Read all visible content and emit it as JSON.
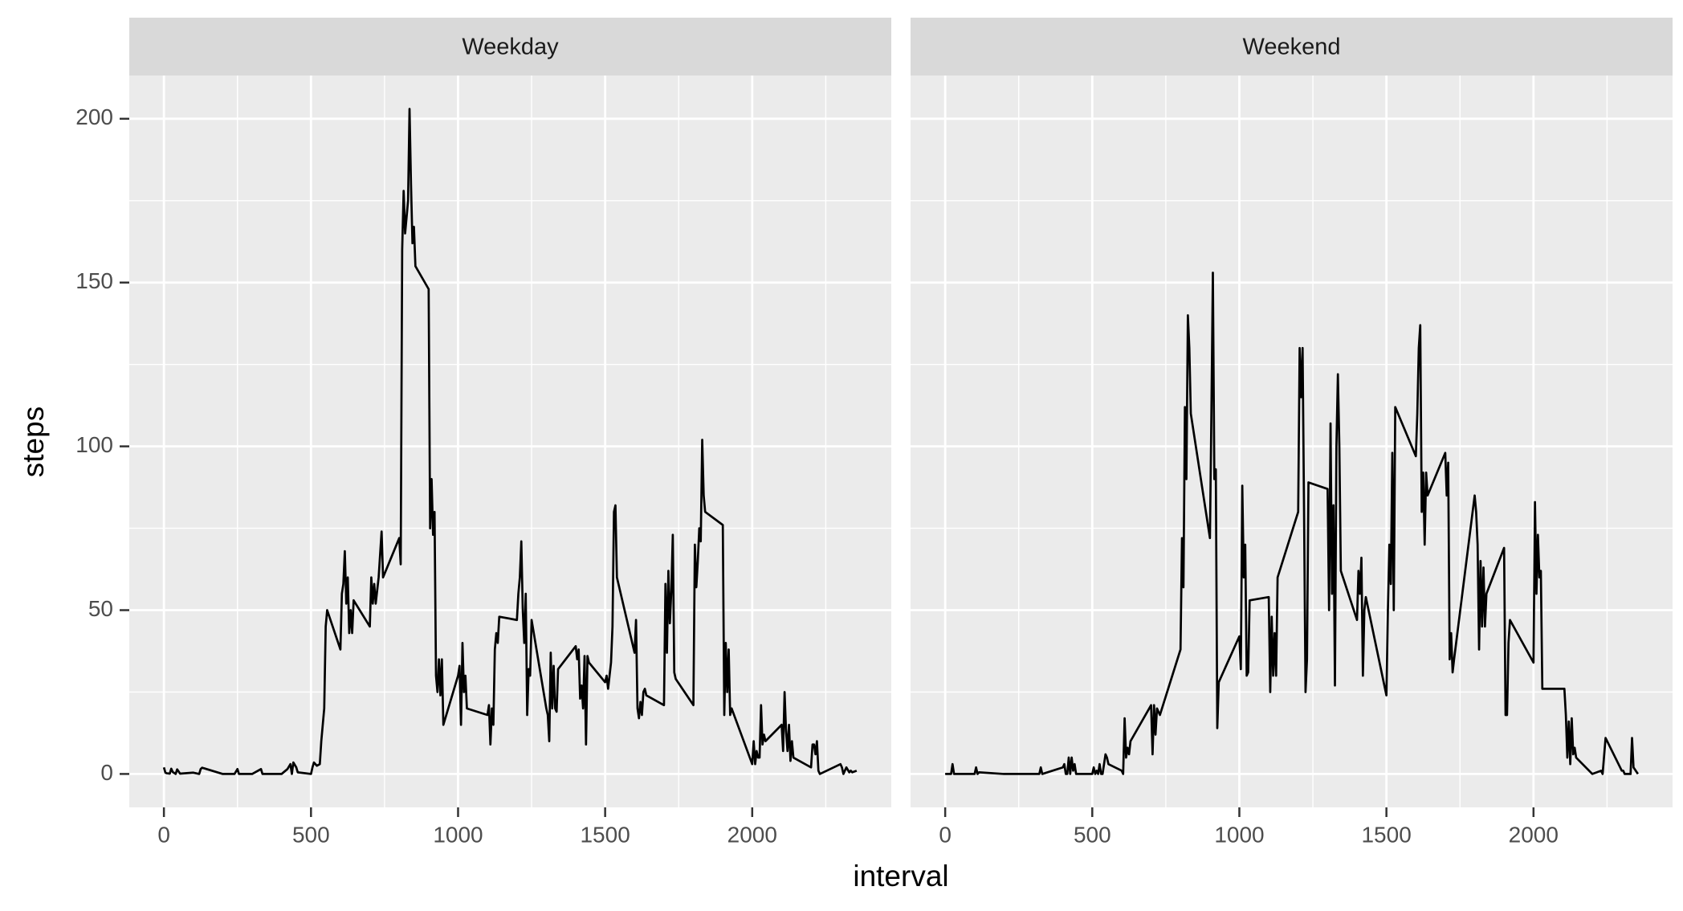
{
  "chart_data": {
    "type": "line",
    "xlabel": "interval",
    "ylabel": "steps",
    "xlim": [
      -117.75,
      2472.75
    ],
    "ylim": [
      -10.2,
      213.2
    ],
    "xticks": [
      0,
      500,
      1000,
      1500,
      2000
    ],
    "yticks": [
      0,
      50,
      100,
      150,
      200
    ],
    "minor_xticks": [
      250,
      750,
      1250,
      1750,
      2250
    ],
    "minor_yticks": [
      25,
      75,
      125,
      175
    ],
    "grid": true,
    "color": "#000000",
    "panels": [
      {
        "title": "Weekday",
        "x": [
          0,
          5,
          10,
          20,
          25,
          30,
          40,
          45,
          55,
          100,
          120,
          125,
          130,
          200,
          240,
          250,
          255,
          300,
          330,
          335,
          400,
          420,
          430,
          435,
          440,
          450,
          455,
          500,
          505,
          510,
          520,
          530,
          535,
          545,
          550,
          555,
          600,
          605,
          610,
          615,
          620,
          625,
          630,
          635,
          640,
          645,
          700,
          705,
          710,
          715,
          720,
          730,
          740,
          745,
          800,
          805,
          810,
          815,
          820,
          825,
          830,
          835,
          840,
          845,
          850,
          855,
          900,
          905,
          910,
          915,
          920,
          925,
          930,
          935,
          940,
          945,
          950,
          1000,
          1005,
          1010,
          1015,
          1020,
          1025,
          1030,
          1100,
          1105,
          1110,
          1115,
          1120,
          1125,
          1130,
          1135,
          1140,
          1200,
          1205,
          1210,
          1215,
          1220,
          1225,
          1230,
          1235,
          1240,
          1245,
          1250,
          1300,
          1305,
          1310,
          1315,
          1320,
          1325,
          1330,
          1335,
          1340,
          1400,
          1405,
          1410,
          1415,
          1420,
          1425,
          1430,
          1435,
          1440,
          1445,
          1500,
          1505,
          1510,
          1515,
          1520,
          1525,
          1530,
          1535,
          1540,
          1600,
          1605,
          1610,
          1615,
          1620,
          1625,
          1630,
          1635,
          1640,
          1700,
          1705,
          1710,
          1715,
          1720,
          1725,
          1730,
          1735,
          1740,
          1800,
          1805,
          1810,
          1815,
          1820,
          1825,
          1830,
          1835,
          1840,
          1900,
          1905,
          1910,
          1915,
          1920,
          1925,
          1930,
          2000,
          2005,
          2010,
          2015,
          2020,
          2025,
          2030,
          2035,
          2040,
          2045,
          2100,
          2105,
          2110,
          2115,
          2120,
          2125,
          2130,
          2135,
          2140,
          2200,
          2205,
          2210,
          2215,
          2220,
          2225,
          2230,
          2300,
          2305,
          2310,
          2315,
          2320,
          2330,
          2335,
          2340,
          2355
        ],
        "values": [
          2,
          0.4,
          0.2,
          0.1,
          1.6,
          0.6,
          0,
          1.4,
          0.1,
          0.4,
          0,
          1.5,
          1.9,
          0,
          0,
          1.5,
          0,
          0,
          1.5,
          0,
          0,
          1.5,
          3,
          0,
          3.5,
          2,
          0.5,
          0,
          2,
          3.5,
          2.5,
          3,
          10,
          20,
          45,
          50,
          38,
          55,
          58,
          68,
          52,
          60,
          43,
          50,
          43,
          53,
          45,
          60,
          52,
          58,
          52,
          60,
          74,
          60,
          72,
          64,
          160,
          178,
          165,
          170,
          175,
          203,
          180,
          162,
          167,
          155,
          148,
          75,
          90,
          73,
          80,
          30,
          25,
          35,
          24,
          35,
          15,
          30,
          33,
          15,
          40,
          25,
          30,
          20,
          18,
          21,
          9,
          20,
          15,
          38,
          43,
          40,
          48,
          47,
          55,
          60,
          71,
          50,
          40,
          55,
          18,
          32,
          30,
          47,
          20,
          18,
          10,
          37,
          20,
          33,
          20,
          19,
          32,
          39,
          35,
          38,
          23,
          27,
          20,
          36,
          9,
          36,
          34,
          28,
          30,
          26,
          30,
          34,
          45,
          80,
          82,
          60,
          37,
          47,
          20,
          17,
          22,
          18,
          25,
          26,
          24,
          21,
          58,
          37,
          62,
          46,
          56,
          73,
          31,
          29,
          21,
          70,
          57,
          65,
          75,
          71,
          102,
          85,
          80,
          76,
          18,
          40,
          25,
          38,
          18,
          20,
          3,
          10,
          3,
          7,
          5,
          5,
          21,
          9,
          12,
          10,
          15,
          7,
          25,
          13,
          7,
          15,
          4,
          10,
          5,
          2,
          9,
          9,
          6,
          10,
          1,
          0,
          3,
          2,
          0,
          1,
          2,
          0.5,
          1,
          0.5,
          1
        ]
      },
      {
        "title": "Weekend",
        "x": [
          0,
          5,
          10,
          15,
          20,
          25,
          30,
          100,
          105,
          110,
          115,
          200,
          300,
          320,
          325,
          330,
          400,
          405,
          410,
          415,
          420,
          425,
          430,
          435,
          440,
          445,
          500,
          505,
          510,
          515,
          520,
          525,
          530,
          535,
          545,
          550,
          555,
          600,
          605,
          610,
          615,
          620,
          625,
          630,
          700,
          705,
          710,
          715,
          720,
          730,
          800,
          805,
          810,
          815,
          820,
          825,
          830,
          835,
          900,
          905,
          910,
          915,
          920,
          925,
          930,
          1000,
          1005,
          1010,
          1015,
          1020,
          1025,
          1030,
          1035,
          1100,
          1105,
          1110,
          1115,
          1120,
          1125,
          1130,
          1200,
          1205,
          1210,
          1215,
          1220,
          1225,
          1230,
          1235,
          1300,
          1305,
          1310,
          1315,
          1320,
          1325,
          1330,
          1335,
          1340,
          1345,
          1400,
          1405,
          1410,
          1415,
          1420,
          1425,
          1430,
          1500,
          1505,
          1510,
          1515,
          1520,
          1525,
          1530,
          1600,
          1605,
          1610,
          1615,
          1620,
          1625,
          1630,
          1635,
          1640,
          1700,
          1705,
          1710,
          1715,
          1720,
          1725,
          1730,
          1800,
          1805,
          1810,
          1815,
          1820,
          1825,
          1830,
          1835,
          1840,
          1900,
          1905,
          1910,
          1915,
          1920,
          2000,
          2005,
          2010,
          2015,
          2020,
          2025,
          2030,
          2100,
          2105,
          2110,
          2115,
          2120,
          2125,
          2130,
          2135,
          2140,
          2145,
          2200,
          2230,
          2235,
          2245,
          2300,
          2305,
          2310,
          2330,
          2335,
          2340,
          2355
        ],
        "values": [
          0,
          0,
          0,
          0,
          0,
          3,
          0,
          0,
          2,
          0,
          0.5,
          0,
          0,
          0,
          2,
          0,
          2,
          3,
          0,
          0,
          5,
          0,
          5,
          1,
          3,
          0,
          0,
          2,
          0,
          1,
          0,
          3,
          0,
          0,
          6,
          5,
          3,
          1,
          0,
          17,
          5,
          8,
          6,
          10,
          21,
          6,
          21,
          12,
          20,
          18,
          38,
          72,
          57,
          112,
          90,
          140,
          130,
          110,
          72,
          110,
          153,
          90,
          93,
          14,
          28,
          42,
          32,
          88,
          60,
          70,
          30,
          31,
          53,
          54,
          25,
          48,
          30,
          43,
          30,
          60,
          80,
          130,
          115,
          130,
          80,
          25,
          35,
          89,
          87,
          50,
          107,
          55,
          82,
          27,
          100,
          122,
          100,
          62,
          47,
          62,
          55,
          66,
          30,
          50,
          54,
          24,
          50,
          70,
          58,
          98,
          50,
          112,
          97,
          110,
          130,
          137,
          80,
          92,
          70,
          92,
          85,
          98,
          85,
          95,
          35,
          43,
          31,
          35,
          85,
          80,
          70,
          38,
          65,
          45,
          63,
          45,
          55,
          69,
          18,
          18,
          40,
          47,
          34,
          83,
          55,
          73,
          60,
          62,
          26,
          26,
          26,
          18,
          5,
          16,
          3,
          17,
          6,
          8,
          5,
          0,
          1,
          0,
          11,
          1,
          1,
          0,
          0,
          11,
          2,
          0
        ]
      }
    ]
  }
}
